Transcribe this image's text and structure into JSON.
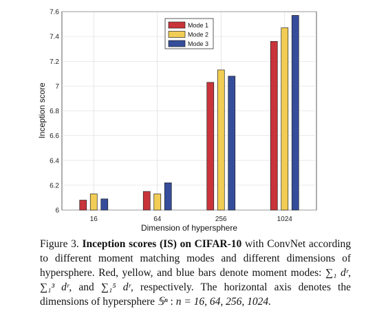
{
  "chart_data": {
    "type": "bar",
    "categories": [
      "16",
      "64",
      "256",
      "1024"
    ],
    "series": [
      {
        "name": "Mode 1",
        "color": "#c8343a",
        "values": [
          6.08,
          6.15,
          7.03,
          7.36
        ]
      },
      {
        "name": "Mode 2",
        "color": "#f2cd55",
        "values": [
          6.13,
          6.13,
          7.13,
          7.47
        ]
      },
      {
        "name": "Mode 3",
        "color": "#354d9b",
        "values": [
          6.09,
          6.22,
          7.08,
          7.57
        ]
      }
    ],
    "title": "",
    "xlabel": "Dimension of hypersphere",
    "ylabel": "Inception score",
    "ylim": [
      6,
      7.6
    ],
    "yticks": [
      "6",
      "6.2",
      "6.4",
      "6.6",
      "6.8",
      "7",
      "7.2",
      "7.4",
      "7.6"
    ],
    "grid": true,
    "legend_position": "top-center"
  },
  "caption": {
    "label": "Figure 3.",
    "bold": "Inception scores (IS) on CIFAR-10",
    "text1": "with ConvNet according to different moment matching modes and different dimensions of hypersphere. Red, yellow, and blue bars denote moment modes:",
    "sum1": "∑₁ dʳ",
    "sum3": "∑₁³ dʳ",
    "and": "and",
    "sum5": "∑₁⁵ dʳ",
    "text2": ", respectively. The horizontal axis denotes the dimensions of hypersphere",
    "sphere": "𝕊ⁿ",
    "text3": ":",
    "nvals": "n = 16, 64, 256, 1024."
  }
}
